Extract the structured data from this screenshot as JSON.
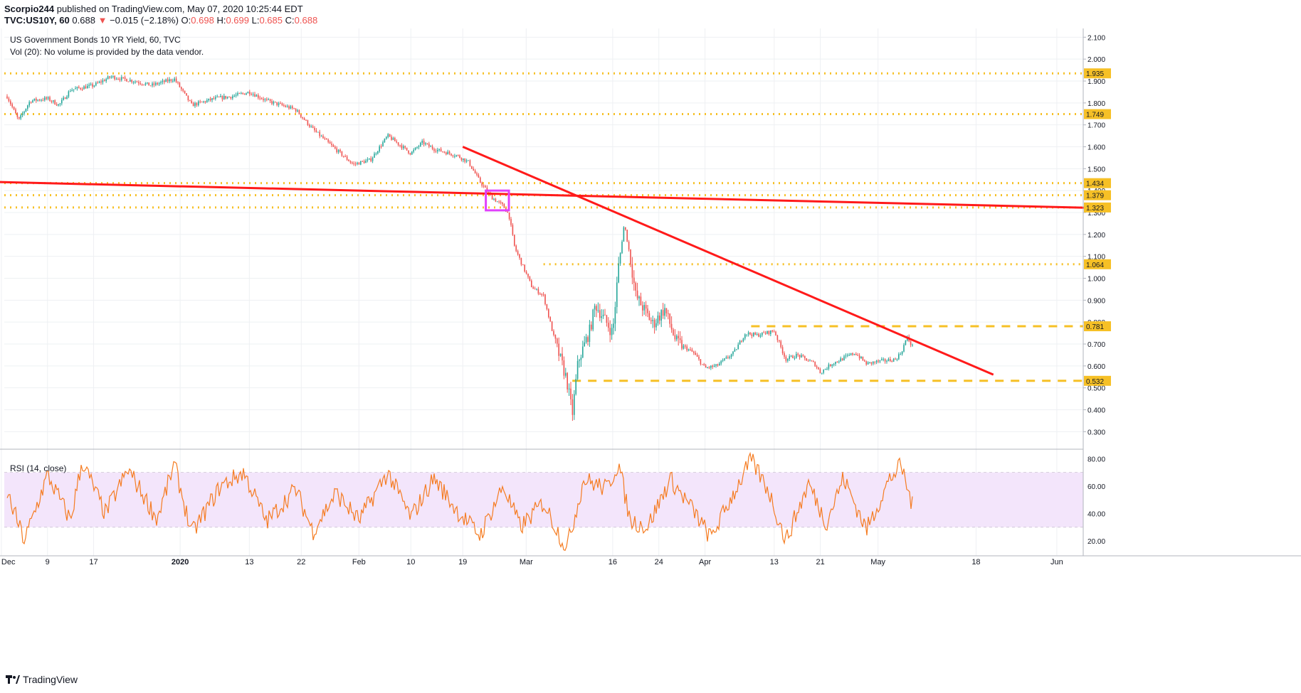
{
  "publish": {
    "author": "Scorpio244",
    "text": "published on TradingView.com, May 07, 2020 10:25:44 EDT"
  },
  "symbol_bar": {
    "ticker": "TVC:US10Y, 60",
    "last": "0.688",
    "arrow": "▼",
    "change": "−0.015 (−2.18%)",
    "o_label": "O:",
    "o_val": "0.698",
    "h_label": "H:",
    "h_val": "0.699",
    "l_label": "L:",
    "l_val": "0.685",
    "c_label": "C:",
    "c_val": "0.688"
  },
  "legend": {
    "series": "US Government Bonds 10 YR Yield, 60, TVC",
    "volume": "Vol (20): No volume is provided by the data vendor.",
    "rsi": "RSI (14, close)"
  },
  "brand": {
    "name": "TradingView"
  },
  "colors": {
    "price_up": "#26a69a",
    "price_down": "#ef5350",
    "trendline": "#ff1a1a",
    "level": "#f6c026",
    "highlight_box": "#e040fb",
    "rsi_line": "#f57c22",
    "rsi_band": "#f3e5fb"
  },
  "chart_data": [
    {
      "type": "candlestick",
      "title": "US Government Bonds 10 YR Yield, 60, TVC",
      "x_tick_labels": [
        "Dec",
        "9",
        "17",
        "2020",
        "13",
        "22",
        "Feb",
        "10",
        "19",
        "Mar",
        "16",
        "24",
        "Apr",
        "13",
        "21",
        "May",
        "18",
        "Jun"
      ],
      "y_tick_labels": [
        "0.300",
        "0.400",
        "0.500",
        "0.600",
        "0.700",
        "0.800",
        "0.900",
        "1.000",
        "1.100",
        "1.200",
        "1.300",
        "1.400",
        "1.500",
        "1.600",
        "1.700",
        "1.800",
        "1.900",
        "2.000",
        "2.100"
      ],
      "ylim": [
        0.22,
        2.14
      ],
      "price_path": [
        [
          "2019-12-02",
          1.83
        ],
        [
          "2019-12-04",
          1.72
        ],
        [
          "2019-12-06",
          1.81
        ],
        [
          "2019-12-09",
          1.82
        ],
        [
          "2019-12-11",
          1.79
        ],
        [
          "2019-12-13",
          1.86
        ],
        [
          "2019-12-17",
          1.88
        ],
        [
          "2019-12-20",
          1.92
        ],
        [
          "2019-12-24",
          1.9
        ],
        [
          "2019-12-27",
          1.88
        ],
        [
          "2019-12-31",
          1.91
        ],
        [
          "2020-01-03",
          1.79
        ],
        [
          "2020-01-07",
          1.82
        ],
        [
          "2020-01-10",
          1.83
        ],
        [
          "2020-01-13",
          1.85
        ],
        [
          "2020-01-16",
          1.81
        ],
        [
          "2020-01-21",
          1.77
        ],
        [
          "2020-01-24",
          1.68
        ],
        [
          "2020-01-27",
          1.61
        ],
        [
          "2020-01-31",
          1.52
        ],
        [
          "2020-02-03",
          1.54
        ],
        [
          "2020-02-06",
          1.65
        ],
        [
          "2020-02-10",
          1.57
        ],
        [
          "2020-02-12",
          1.62
        ],
        [
          "2020-02-14",
          1.59
        ],
        [
          "2020-02-18",
          1.56
        ],
        [
          "2020-02-20",
          1.53
        ],
        [
          "2020-02-22",
          1.44
        ],
        [
          "2020-02-24",
          1.37
        ],
        [
          "2020-02-26",
          1.33
        ],
        [
          "2020-02-27",
          1.29
        ],
        [
          "2020-02-28",
          1.14
        ],
        [
          "2020-03-02",
          0.96
        ],
        [
          "2020-03-04",
          0.92
        ],
        [
          "2020-03-06",
          0.71
        ],
        [
          "2020-03-08",
          0.54
        ],
        [
          "2020-03-09",
          0.38
        ],
        [
          "2020-03-10",
          0.62
        ],
        [
          "2020-03-12",
          0.76
        ],
        [
          "2020-03-13",
          0.88
        ],
        [
          "2020-03-16",
          0.75
        ],
        [
          "2020-03-17",
          1.05
        ],
        [
          "2020-03-18",
          1.25
        ],
        [
          "2020-03-19",
          1.1
        ],
        [
          "2020-03-20",
          0.92
        ],
        [
          "2020-03-23",
          0.79
        ],
        [
          "2020-03-25",
          0.86
        ],
        [
          "2020-03-27",
          0.71
        ],
        [
          "2020-03-30",
          0.66
        ],
        [
          "2020-04-01",
          0.59
        ],
        [
          "2020-04-03",
          0.6
        ],
        [
          "2020-04-06",
          0.66
        ],
        [
          "2020-04-08",
          0.75
        ],
        [
          "2020-04-10",
          0.74
        ],
        [
          "2020-04-13",
          0.76
        ],
        [
          "2020-04-15",
          0.63
        ],
        [
          "2020-04-17",
          0.65
        ],
        [
          "2020-04-20",
          0.61
        ],
        [
          "2020-04-21",
          0.57
        ],
        [
          "2020-04-23",
          0.61
        ],
        [
          "2020-04-27",
          0.66
        ],
        [
          "2020-04-29",
          0.61
        ],
        [
          "2020-05-01",
          0.62
        ],
        [
          "2020-05-04",
          0.63
        ],
        [
          "2020-05-05",
          0.66
        ],
        [
          "2020-05-06",
          0.73
        ],
        [
          "2020-05-07",
          0.688
        ]
      ],
      "horizontal_levels": [
        {
          "value": 1.935,
          "label": "1.935",
          "style": "dotted"
        },
        {
          "value": 1.749,
          "label": "1.749",
          "style": "dotted"
        },
        {
          "value": 1.434,
          "label": "1.434",
          "style": "dotted"
        },
        {
          "value": 1.379,
          "label": "1.379",
          "style": "dotted"
        },
        {
          "value": 1.323,
          "label": "1.323",
          "style": "dotted"
        },
        {
          "value": 1.064,
          "label": "1.064",
          "style": "dotted"
        },
        {
          "value": 0.781,
          "label": "0.781",
          "style": "dashed"
        },
        {
          "value": 0.532,
          "label": "0.532",
          "style": "dashed"
        }
      ],
      "trendlines": [
        {
          "from": [
            "2019-11-29",
            1.44
          ],
          "to": [
            "2020-06-09",
            1.32
          ]
        },
        {
          "from": [
            "2020-02-19",
            1.6
          ],
          "to": [
            "2020-05-21",
            0.56
          ]
        }
      ],
      "highlight_box": {
        "from": [
          "2020-02-23",
          1.4
        ],
        "to": [
          "2020-02-27",
          1.31
        ]
      },
      "grid": true
    },
    {
      "type": "line",
      "title": "RSI (14, close)",
      "y_tick_labels": [
        "20.00",
        "40.00",
        "60.00",
        "80.00"
      ],
      "ylim": [
        9,
        87
      ],
      "band": [
        30,
        70
      ],
      "approx_path": [
        [
          "2019-12-02",
          55
        ],
        [
          "2019-12-05",
          20
        ],
        [
          "2019-12-09",
          68
        ],
        [
          "2019-12-13",
          35
        ],
        [
          "2019-12-15",
          78
        ],
        [
          "2019-12-19",
          40
        ],
        [
          "2019-12-23",
          72
        ],
        [
          "2019-12-28",
          36
        ],
        [
          "2019-12-31",
          76
        ],
        [
          "2020-01-03",
          25
        ],
        [
          "2020-01-08",
          60
        ],
        [
          "2020-01-12",
          70
        ],
        [
          "2020-01-16",
          34
        ],
        [
          "2020-01-21",
          58
        ],
        [
          "2020-01-24",
          27
        ],
        [
          "2020-01-28",
          55
        ],
        [
          "2020-02-01",
          35
        ],
        [
          "2020-02-06",
          70
        ],
        [
          "2020-02-10",
          37
        ],
        [
          "2020-02-14",
          66
        ],
        [
          "2020-02-18",
          42
        ],
        [
          "2020-02-22",
          24
        ],
        [
          "2020-02-26",
          60
        ],
        [
          "2020-02-29",
          30
        ],
        [
          "2020-03-04",
          48
        ],
        [
          "2020-03-08",
          14
        ],
        [
          "2020-03-11",
          65
        ],
        [
          "2020-03-15",
          58
        ],
        [
          "2020-03-17",
          77
        ],
        [
          "2020-03-19",
          35
        ],
        [
          "2020-03-22",
          30
        ],
        [
          "2020-03-26",
          65
        ],
        [
          "2020-03-30",
          42
        ],
        [
          "2020-04-02",
          22
        ],
        [
          "2020-04-06",
          55
        ],
        [
          "2020-04-09",
          79
        ],
        [
          "2020-04-12",
          57
        ],
        [
          "2020-04-15",
          20
        ],
        [
          "2020-04-19",
          62
        ],
        [
          "2020-04-22",
          33
        ],
        [
          "2020-04-25",
          66
        ],
        [
          "2020-04-29",
          28
        ],
        [
          "2020-05-03",
          65
        ],
        [
          "2020-05-05",
          75
        ],
        [
          "2020-05-07",
          45
        ]
      ]
    }
  ]
}
